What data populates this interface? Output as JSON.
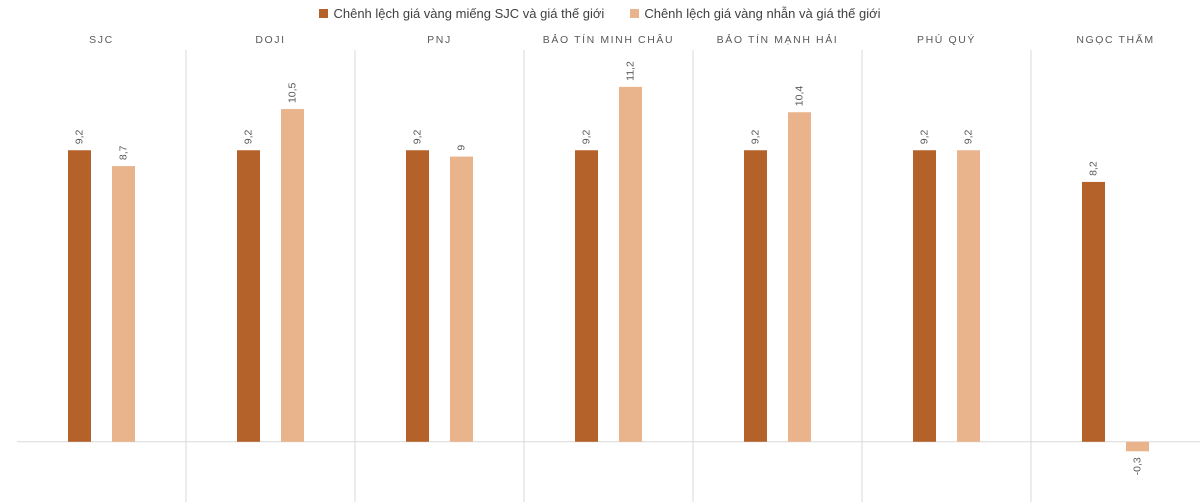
{
  "chart_data": {
    "type": "bar",
    "categories": [
      "SJC",
      "DOJI",
      "PNJ",
      "BẢO TÍN MINH CHÂU",
      "BẢO TÍN MẠNH HẢI",
      "PHÚ QUÝ",
      "NGỌC THẨM"
    ],
    "series": [
      {
        "name": "Chênh lệch giá vàng miếng SJC và giá thế giới",
        "values": [
          9.2,
          9.2,
          9.2,
          9.2,
          9.2,
          9.2,
          8.2
        ],
        "labels": [
          "9,2",
          "9,2",
          "9,2",
          "9,2",
          "9,2",
          "9,2",
          "8,2"
        ],
        "color": "#b5622a"
      },
      {
        "name": "Chênh lệch giá vàng nhẫn và giá thế giới",
        "values": [
          8.7,
          10.5,
          9,
          11.2,
          10.4,
          9.2,
          -0.3
        ],
        "labels": [
          "8,7",
          "10,5",
          "9",
          "11,2",
          "10,4",
          "9,2",
          "-0,3"
        ],
        "color": "#e9b48b"
      }
    ],
    "ylim": [
      -1.9,
      12.3
    ],
    "legend_position": "top",
    "grid": false,
    "separators": true
  }
}
